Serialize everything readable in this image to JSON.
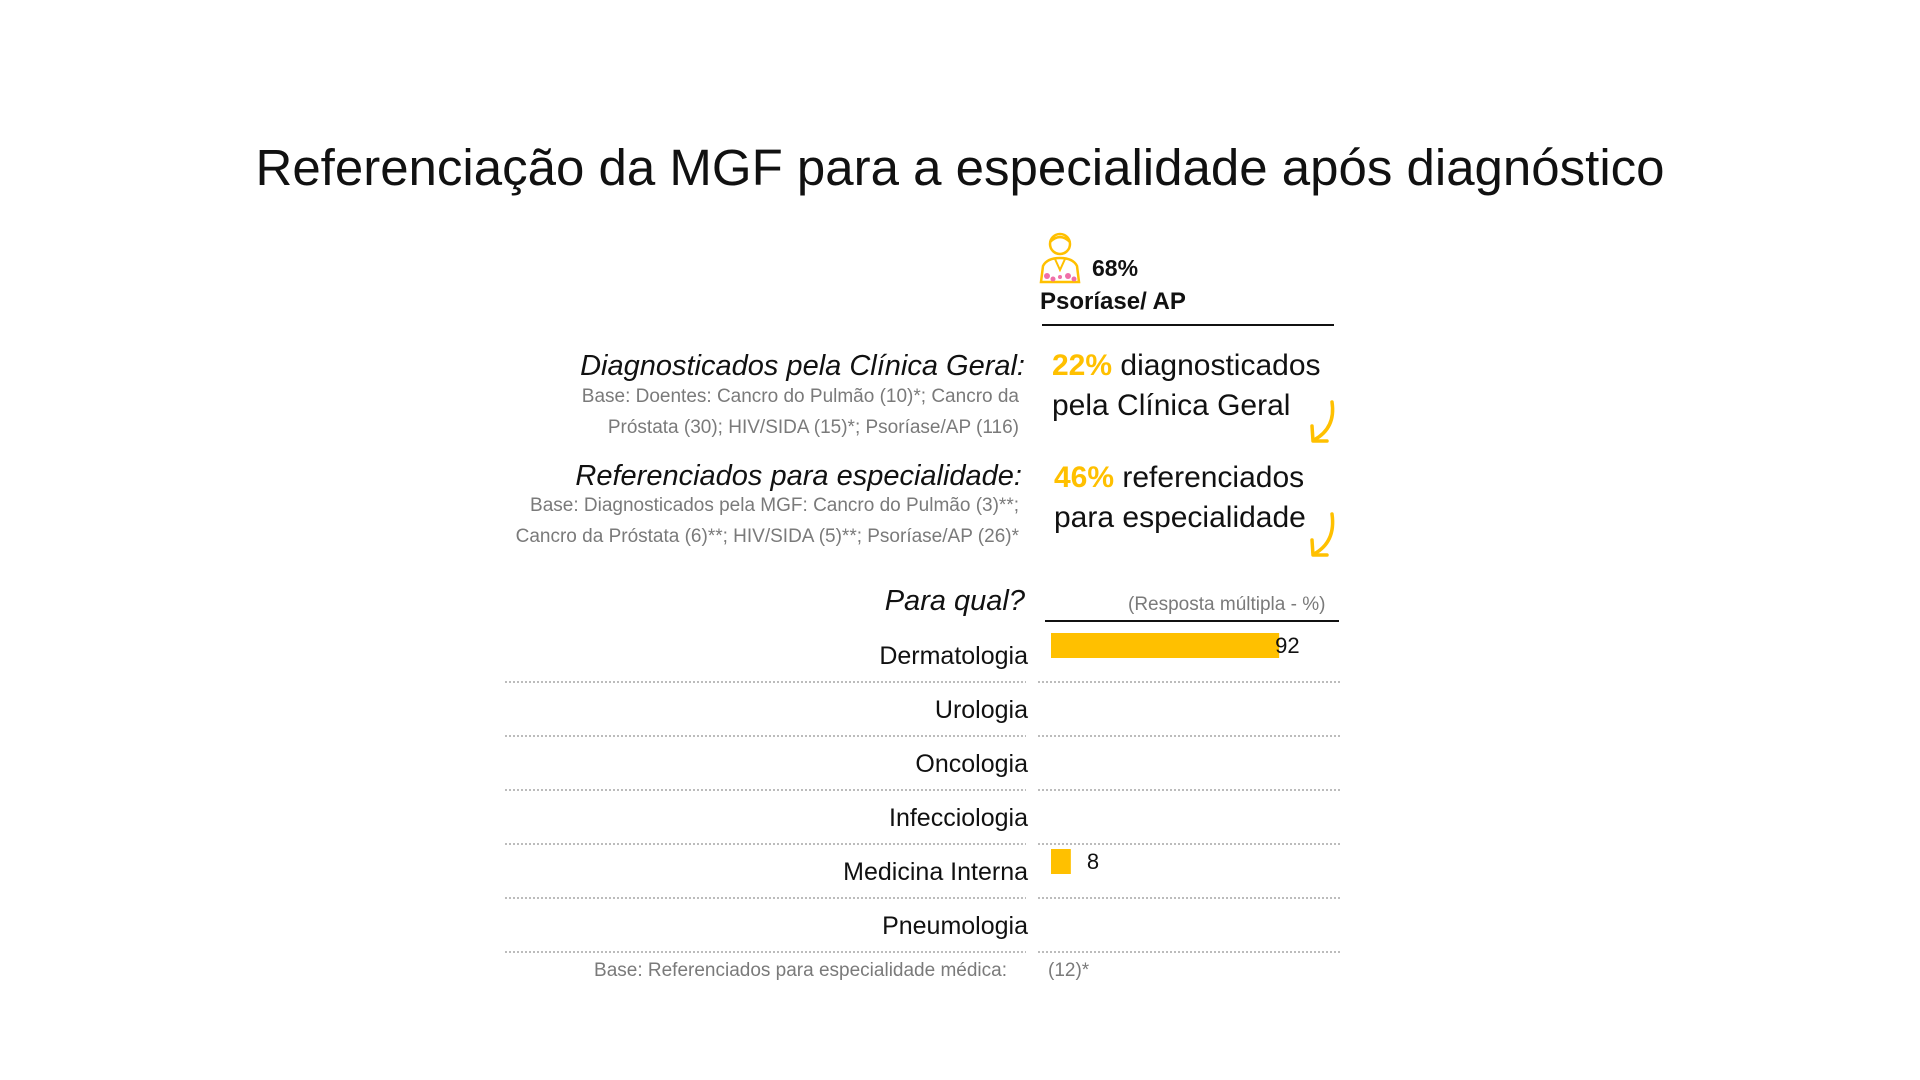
{
  "title": "Referenciação da MGF para a especialidade após diagnóstico",
  "header": {
    "icon": "person-icon",
    "percent": "68%",
    "group": "Psoríase/ AP"
  },
  "diagnosed": {
    "label": "Diagnosticados pela Clínica Geral:",
    "base_line1": "Base: Doentes: Cancro do Pulmão (10)*; Cancro da",
    "base_line2": "Próstata (30); HIV/SIDA (15)*; Psoríase/AP (116)",
    "stat_value": "22%",
    "stat_text_1": " diagnosticados",
    "stat_text_2": "pela Clínica Geral"
  },
  "referred": {
    "label": "Referenciados para especialidade:",
    "base_line1": "Base: Diagnosticados pela MGF:  Cancro do Pulmão (3)**;",
    "base_line2": "Cancro da Próstata (6)**; HIV/SIDA (5)**; Psoríase/AP (26)*",
    "stat_value": "46%",
    "stat_text_1": " referenciados",
    "stat_text_2": "para especialidade"
  },
  "question": {
    "label": "Para qual?",
    "note": "(Resposta múltipla - %)"
  },
  "footer": {
    "base_label": "Base: Referenciados para especialidade médica:",
    "base_value": "(12)*"
  },
  "colors": {
    "accent": "#FFC000",
    "text": "#111111",
    "muted": "#7a7a7a",
    "divider": "#a6a6a6"
  },
  "chart_data": {
    "type": "bar",
    "orientation": "horizontal",
    "categories": [
      "Dermatologia",
      "Urologia",
      "Oncologia",
      "Infecciologia",
      "Medicina Interna",
      "Pneumologia"
    ],
    "values": [
      92,
      null,
      null,
      null,
      8,
      null
    ],
    "value_labels": [
      "92",
      "",
      "",
      "",
      "8",
      ""
    ],
    "title": "Para qual?",
    "xlabel": "(Resposta múltipla - %)",
    "xlim": [
      0,
      100
    ],
    "grid": false,
    "legend": "none"
  }
}
